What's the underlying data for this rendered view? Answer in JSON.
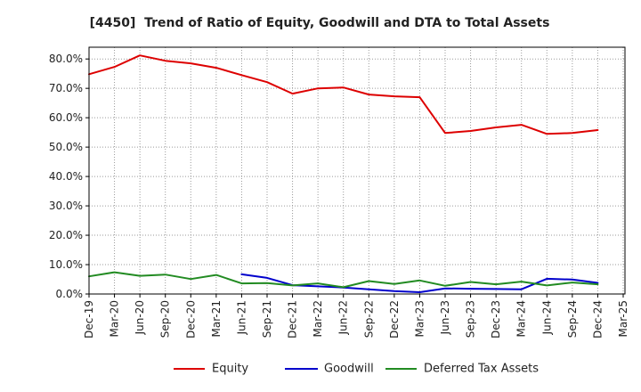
{
  "chart_data": {
    "type": "line",
    "title": "[4450]  Trend of Ratio of Equity, Goodwill and DTA to Total Assets",
    "xlabel": "",
    "ylabel": "",
    "categories": [
      "Dec-19",
      "Mar-20",
      "Jun-20",
      "Sep-20",
      "Dec-20",
      "Mar-21",
      "Jun-21",
      "Sep-21",
      "Dec-21",
      "Mar-22",
      "Jun-22",
      "Sep-22",
      "Dec-22",
      "Mar-23",
      "Jun-23",
      "Sep-23",
      "Dec-23",
      "Mar-24",
      "Jun-24",
      "Sep-24",
      "Dec-24",
      "Mar-25"
    ],
    "ylim": [
      0,
      84
    ],
    "yticks": [
      0,
      10,
      20,
      30,
      40,
      50,
      60,
      70,
      80
    ],
    "ytick_labels": [
      "0.0%",
      "10.0%",
      "20.0%",
      "30.0%",
      "40.0%",
      "50.0%",
      "60.0%",
      "70.0%",
      "80.0%"
    ],
    "grid": true,
    "legend_position": "bottom",
    "series": [
      {
        "name": "Equity",
        "color": "#dd0000",
        "values": [
          74.8,
          77.3,
          81.2,
          79.4,
          78.5,
          77.0,
          74.5,
          72.1,
          68.2,
          70.0,
          70.3,
          67.9,
          67.3,
          67.0,
          54.8,
          55.5,
          56.7,
          57.6,
          54.5,
          54.8,
          55.8,
          null
        ]
      },
      {
        "name": "Goodwill",
        "color": "#0000cc",
        "values": [
          null,
          null,
          null,
          null,
          null,
          null,
          6.7,
          5.5,
          3.0,
          2.6,
          2.2,
          1.6,
          1.0,
          0.6,
          1.9,
          1.8,
          1.7,
          1.6,
          5.2,
          4.9,
          3.8,
          null
        ]
      },
      {
        "name": "Deferred Tax Assets",
        "color": "#228b22",
        "values": [
          6.0,
          7.4,
          6.2,
          6.6,
          5.1,
          6.5,
          3.6,
          3.7,
          2.9,
          3.6,
          2.3,
          4.4,
          3.4,
          4.6,
          2.8,
          4.1,
          3.3,
          4.2,
          2.9,
          3.9,
          3.3,
          null
        ]
      }
    ]
  }
}
